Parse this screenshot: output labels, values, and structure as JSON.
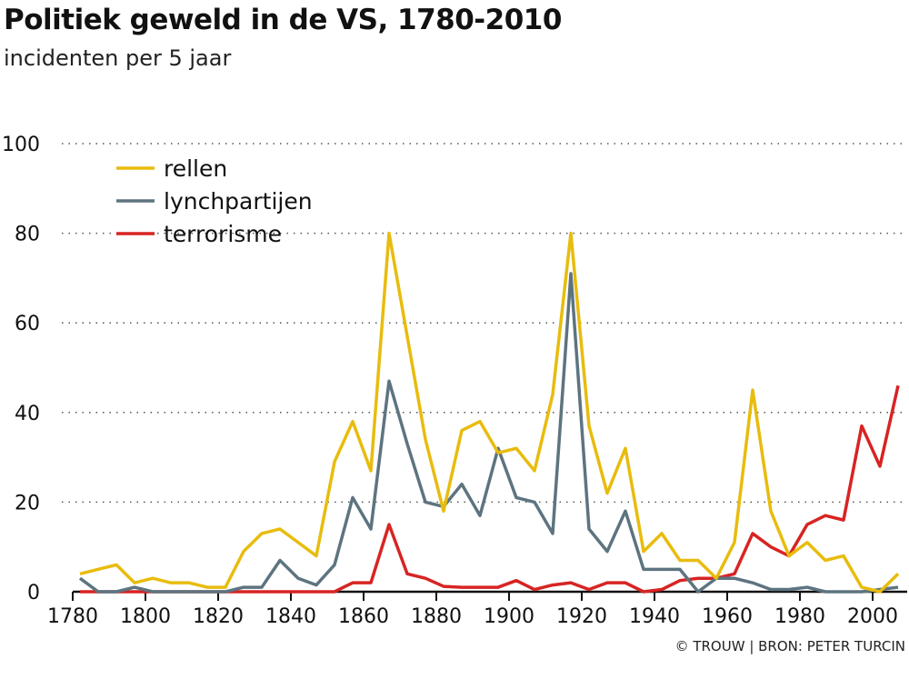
{
  "title": "Politiek geweld in de VS, 1780-2010",
  "subtitle": "incidenten per 5 jaar",
  "source": "© TROUW | BRON: PETER TURCIN",
  "chart_data": {
    "type": "line",
    "title": "Politiek geweld in de VS, 1780-2010",
    "subtitle": "incidenten per 5 jaar",
    "xlim": [
      1780,
      2010
    ],
    "ylim": [
      0,
      100
    ],
    "xticks": [
      1780,
      1800,
      1820,
      1840,
      1860,
      1880,
      1900,
      1920,
      1940,
      1960,
      1980,
      2000
    ],
    "yticks": [
      0,
      20,
      40,
      60,
      80,
      100
    ],
    "grid": "horizontal dotted",
    "legend": "top-left",
    "x": [
      1782,
      1787,
      1792,
      1797,
      1802,
      1807,
      1812,
      1817,
      1822,
      1827,
      1832,
      1837,
      1842,
      1847,
      1852,
      1857,
      1862,
      1867,
      1872,
      1877,
      1882,
      1887,
      1892,
      1897,
      1902,
      1907,
      1912,
      1917,
      1922,
      1927,
      1932,
      1937,
      1942,
      1947,
      1952,
      1957,
      1962,
      1967,
      1972,
      1977,
      1982,
      1987,
      1992,
      1997,
      2002,
      2007
    ],
    "series": [
      {
        "name": "rellen",
        "color": "#e8bc0e",
        "values": [
          4,
          5,
          6,
          2,
          3,
          2,
          2,
          1,
          1,
          9,
          13,
          14,
          11,
          8,
          29,
          38,
          27,
          80,
          57,
          34,
          18,
          36,
          38,
          31,
          32,
          27,
          44,
          80,
          37,
          22,
          32,
          9,
          13,
          7,
          7,
          3,
          11,
          45,
          18,
          8,
          11,
          7,
          8,
          1,
          0,
          4
        ]
      },
      {
        "name": "lynchpartijen",
        "color": "#5d7480",
        "values": [
          3,
          0,
          0,
          1,
          0,
          0,
          0,
          0,
          0,
          1,
          1,
          7,
          3,
          1.5,
          6,
          21,
          14,
          47,
          33,
          20,
          19,
          24,
          17,
          32,
          21,
          20,
          13,
          71,
          14,
          9,
          18,
          5,
          5,
          5,
          0,
          3,
          3,
          2,
          0.5,
          0.5,
          1,
          0,
          0,
          0,
          0.5,
          1
        ]
      },
      {
        "name": "terrorisme",
        "color": "#d72423",
        "values": [
          0,
          0,
          0,
          0,
          0,
          0,
          0,
          0,
          0,
          0,
          0,
          0,
          0,
          0,
          0,
          2,
          2,
          15,
          4,
          3,
          1.2,
          1,
          1,
          1,
          2.5,
          0.5,
          1.5,
          2,
          0.5,
          2,
          2,
          0,
          0.5,
          2.5,
          3,
          3,
          4,
          13,
          10,
          8,
          15,
          17,
          16,
          37,
          28,
          46
        ]
      }
    ]
  }
}
